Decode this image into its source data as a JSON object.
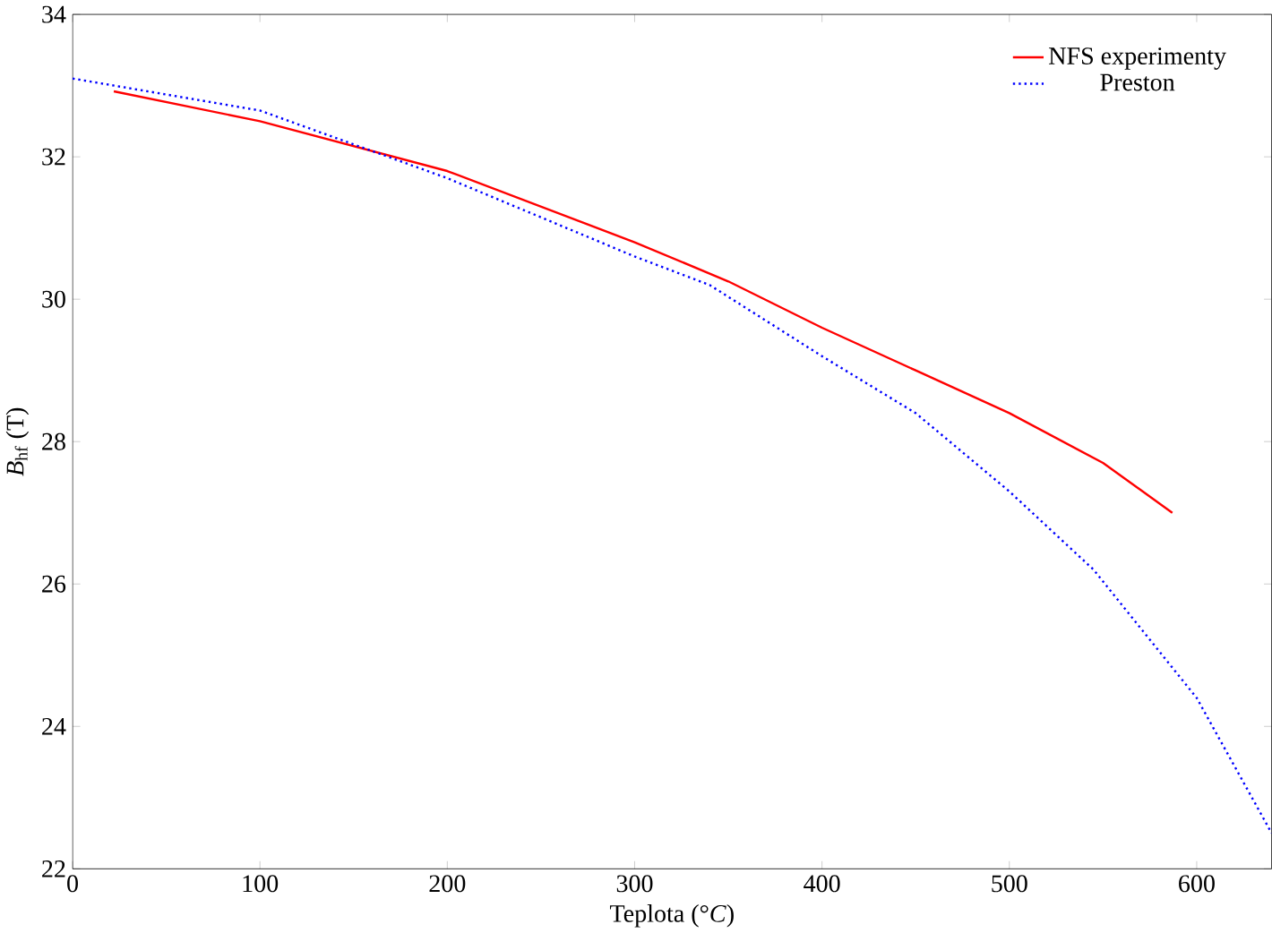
{
  "chart_data": {
    "type": "line",
    "xlabel": "Teplota (°*C*)",
    "ylabel": "*B*$_{hf}$ (T)",
    "xlim": [
      0,
      640
    ],
    "ylim": [
      22,
      34
    ],
    "xticks": [
      0,
      100,
      200,
      300,
      400,
      500,
      600
    ],
    "yticks": [
      22,
      24,
      26,
      28,
      30,
      32,
      34
    ],
    "grid": false,
    "legend": "top right",
    "marker": "none",
    "series": [
      {
        "name": "NFS experimenty",
        "color": "#ff0000",
        "line_style": "solid",
        "x": [
          22,
          100,
          200,
          300,
          350,
          400,
          450,
          500,
          550,
          587
        ],
        "values": [
          32.92,
          32.5,
          31.8,
          30.8,
          30.25,
          29.6,
          29.0,
          28.4,
          27.7,
          27.0
        ]
      },
      {
        "name": "Preston",
        "color": "#0000ff",
        "line_style": "dotted",
        "x": [
          0,
          100,
          200,
          300,
          340,
          400,
          450,
          500,
          545,
          600,
          640
        ],
        "values": [
          33.1,
          32.65,
          31.7,
          30.6,
          30.2,
          29.2,
          28.4,
          27.3,
          26.2,
          24.4,
          22.5
        ]
      }
    ]
  }
}
